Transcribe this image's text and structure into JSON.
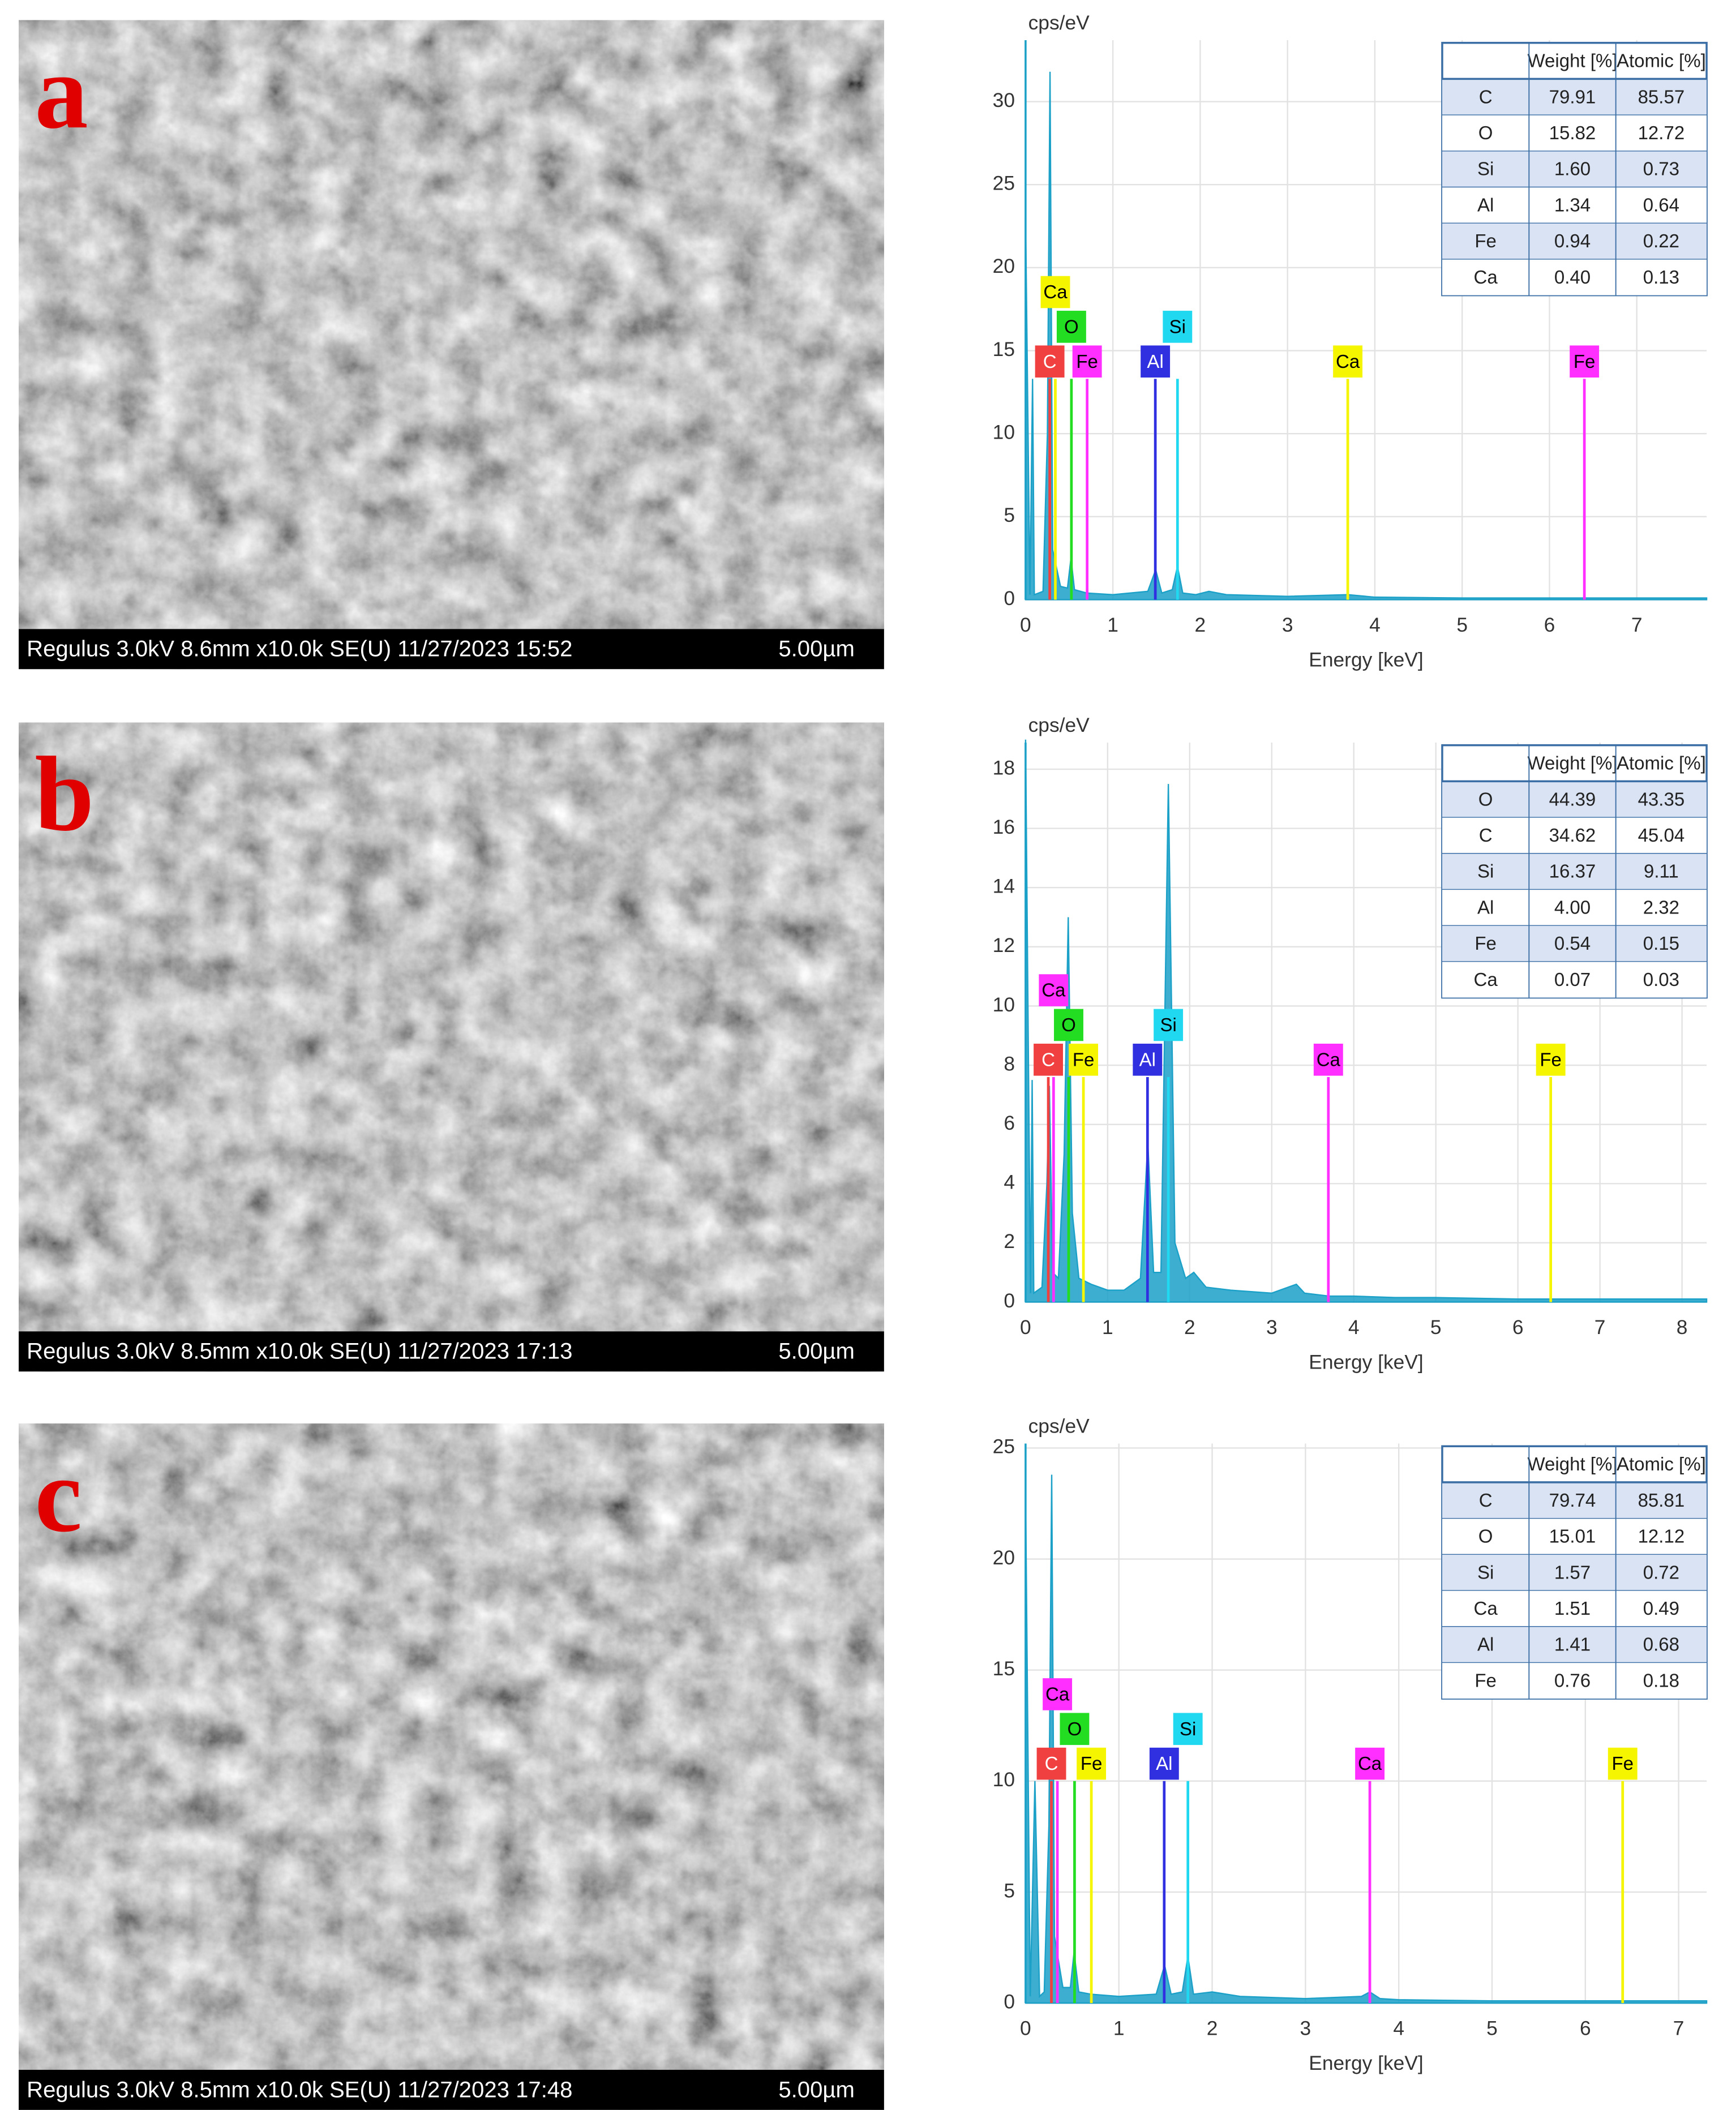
{
  "panels": [
    {
      "label": "a",
      "sem_caption": "Regulus 3.0kV 8.6mm x10.0k SE(U) 11/27/2023 15:52",
      "scale_bar": "5.00µm"
    },
    {
      "label": "b",
      "sem_caption": "Regulus 3.0kV 8.5mm x10.0k SE(U) 11/27/2023 17:13",
      "scale_bar": "5.00µm"
    },
    {
      "label": "c",
      "sem_caption": "Regulus 3.0kV 8.5mm x10.0k SE(U) 11/27/2023 17:48",
      "scale_bar": "5.00µm"
    }
  ],
  "chart_data": [
    {
      "type": "area",
      "y_label": "cps/eV",
      "x_label": "Energy [keV]",
      "color": "#1ba0c8",
      "grid": true,
      "xlim": [
        0,
        7.8
      ],
      "ylim": [
        0,
        33.7
      ],
      "xticks": [
        0,
        1,
        2,
        3,
        4,
        5,
        6,
        7
      ],
      "yticks": [
        0,
        5,
        10,
        15,
        20,
        25,
        30
      ],
      "x": [
        0,
        0.05,
        0.08,
        0.1,
        0.2,
        0.25,
        0.28,
        0.31,
        0.4,
        0.48,
        0.52,
        0.56,
        0.7,
        1.0,
        1.4,
        1.49,
        1.56,
        1.68,
        1.74,
        1.8,
        1.95,
        2.1,
        2.3,
        3,
        3.69,
        4,
        5,
        6,
        7,
        7.8
      ],
      "values": [
        23,
        0.3,
        13.3,
        0.3,
        0.5,
        10,
        31.8,
        3,
        0.8,
        0.7,
        2.5,
        0.6,
        0.4,
        0.3,
        0.5,
        1.8,
        0.4,
        0.6,
        2,
        0.4,
        0.3,
        0.5,
        0.3,
        0.2,
        0.3,
        0.15,
        0.1,
        0.1,
        0.1,
        0.1
      ],
      "markers": [
        {
          "element": "C",
          "energy": 0.277,
          "height": 13.3,
          "color": "#f04040"
        },
        {
          "element": "O",
          "energy": 0.525,
          "height": 13.3,
          "color": "#22dd22"
        },
        {
          "element": "Al",
          "energy": 1.486,
          "height": 13.3,
          "color": "#3030e0"
        },
        {
          "element": "Ca",
          "energy": 3.69,
          "height": 13.3,
          "color": "#f5f500"
        },
        {
          "element": "Fe",
          "energy": 6.4,
          "height": 13.3,
          "color": "#ff30ff"
        },
        {
          "element": "Ca",
          "energy": 0.341,
          "height": 13.3,
          "color": "#f5f500"
        },
        {
          "element": "Fe",
          "energy": 0.705,
          "height": 13.3,
          "color": "#ff30ff"
        },
        {
          "element": "Si",
          "energy": 1.74,
          "height": 13.3,
          "color": "#20d8f0"
        }
      ],
      "table": {
        "header": [
          "Weight [%]",
          "Atomic [%]"
        ],
        "rows": [
          [
            "C",
            "79.91",
            "85.57"
          ],
          [
            "O",
            "15.82",
            "12.72"
          ],
          [
            "Si",
            "1.60",
            "0.73"
          ],
          [
            "Al",
            "1.34",
            "0.64"
          ],
          [
            "Fe",
            "0.94",
            "0.22"
          ],
          [
            "Ca",
            "0.40",
            "0.13"
          ]
        ]
      }
    },
    {
      "type": "area",
      "y_label": "cps/eV",
      "x_label": "Energy [keV]",
      "color": "#1ba0c8",
      "grid": true,
      "xlim": [
        0,
        8.3
      ],
      "ylim": [
        0,
        18.9
      ],
      "xticks": [
        0,
        1,
        2,
        3,
        4,
        5,
        6,
        7,
        8
      ],
      "yticks": [
        0,
        2,
        4,
        6,
        8,
        10,
        12,
        14,
        16,
        18
      ],
      "x": [
        0,
        0.06,
        0.08,
        0.1,
        0.2,
        0.26,
        0.29,
        0.33,
        0.4,
        0.47,
        0.52,
        0.57,
        0.65,
        0.8,
        1.0,
        1.2,
        1.4,
        1.49,
        1.56,
        1.65,
        1.74,
        1.82,
        1.95,
        2.05,
        2.2,
        2.5,
        3,
        3.3,
        3.4,
        3.7,
        4,
        4.5,
        5,
        6,
        7,
        8.3
      ],
      "values": [
        19,
        0.3,
        7.5,
        0.3,
        0.5,
        4,
        7.3,
        1,
        0.8,
        5,
        13,
        3,
        0.8,
        0.6,
        0.4,
        0.4,
        0.8,
        5.4,
        1,
        1,
        17.5,
        2,
        0.8,
        1,
        0.5,
        0.4,
        0.3,
        0.6,
        0.3,
        0.2,
        0.2,
        0.15,
        0.15,
        0.1,
        0.1,
        0.1
      ],
      "markers": [
        {
          "element": "C",
          "energy": 0.277,
          "height": 7.6,
          "color": "#f04040"
        },
        {
          "element": "Fe",
          "energy": 0.705,
          "height": 7.6,
          "color": "#f5f500"
        },
        {
          "element": "Al",
          "energy": 1.486,
          "height": 7.6,
          "color": "#3030e0"
        },
        {
          "element": "Ca",
          "energy": 3.69,
          "height": 7.6,
          "color": "#ff30ff"
        },
        {
          "element": "Fe",
          "energy": 6.4,
          "height": 7.6,
          "color": "#f5f500"
        },
        {
          "element": "O",
          "energy": 0.525,
          "height": 7.6,
          "color": "#22dd22"
        },
        {
          "element": "Ca",
          "energy": 0.341,
          "height": 7.6,
          "color": "#ff30ff"
        },
        {
          "element": "Si",
          "energy": 1.74,
          "height": 7.6,
          "color": "#20d8f0"
        }
      ],
      "table": {
        "header": [
          "Weight [%]",
          "Atomic [%]"
        ],
        "rows": [
          [
            "O",
            "44.39",
            "43.35"
          ],
          [
            "C",
            "34.62",
            "45.04"
          ],
          [
            "Si",
            "16.37",
            "9.11"
          ],
          [
            "Al",
            "4.00",
            "2.32"
          ],
          [
            "Fe",
            "0.54",
            "0.15"
          ],
          [
            "Ca",
            "0.07",
            "0.03"
          ]
        ]
      }
    },
    {
      "type": "area",
      "y_label": "cps/eV",
      "x_label": "Energy [keV]",
      "color": "#1ba0c8",
      "grid": true,
      "xlim": [
        0,
        7.3
      ],
      "ylim": [
        0,
        25.2
      ],
      "xticks": [
        0,
        1,
        2,
        3,
        4,
        5,
        6,
        7
      ],
      "yticks": [
        0,
        5,
        10,
        15,
        20,
        25
      ],
      "x": [
        0,
        0.05,
        0.1,
        0.15,
        0.2,
        0.25,
        0.28,
        0.31,
        0.4,
        0.48,
        0.52,
        0.57,
        0.7,
        1.0,
        1.4,
        1.49,
        1.56,
        1.68,
        1.74,
        1.8,
        2.0,
        2.3,
        3,
        3.6,
        3.69,
        3.8,
        4,
        5,
        6,
        7,
        7.3
      ],
      "values": [
        23,
        0.3,
        10,
        0.3,
        0.5,
        8,
        23.8,
        3,
        0.7,
        0.7,
        2.3,
        0.5,
        0.4,
        0.3,
        0.4,
        1.7,
        0.4,
        0.5,
        2.1,
        0.4,
        0.5,
        0.3,
        0.2,
        0.3,
        0.5,
        0.2,
        0.15,
        0.1,
        0.1,
        0.1,
        0.1
      ],
      "markers": [
        {
          "element": "C",
          "energy": 0.277,
          "height": 10,
          "color": "#f04040"
        },
        {
          "element": "O",
          "energy": 0.525,
          "height": 10,
          "color": "#22dd22"
        },
        {
          "element": "Al",
          "energy": 1.486,
          "height": 10,
          "color": "#3030e0"
        },
        {
          "element": "Si",
          "energy": 1.74,
          "height": 10,
          "color": "#20d8f0"
        },
        {
          "element": "Ca",
          "energy": 3.69,
          "height": 10,
          "color": "#ff30ff"
        },
        {
          "element": "Fe",
          "energy": 6.4,
          "height": 10,
          "color": "#f5f500"
        },
        {
          "element": "Ca",
          "energy": 0.341,
          "height": 10,
          "color": "#ff30ff"
        },
        {
          "element": "Fe",
          "energy": 0.705,
          "height": 10,
          "color": "#f5f500"
        }
      ],
      "table": {
        "header": [
          "Weight [%]",
          "Atomic [%]"
        ],
        "rows": [
          [
            "C",
            "79.74",
            "85.81"
          ],
          [
            "O",
            "15.01",
            "12.12"
          ],
          [
            "Si",
            "1.57",
            "0.72"
          ],
          [
            "Ca",
            "1.51",
            "0.49"
          ],
          [
            "Al",
            "1.41",
            "0.68"
          ],
          [
            "Fe",
            "0.76",
            "0.18"
          ]
        ]
      }
    }
  ]
}
